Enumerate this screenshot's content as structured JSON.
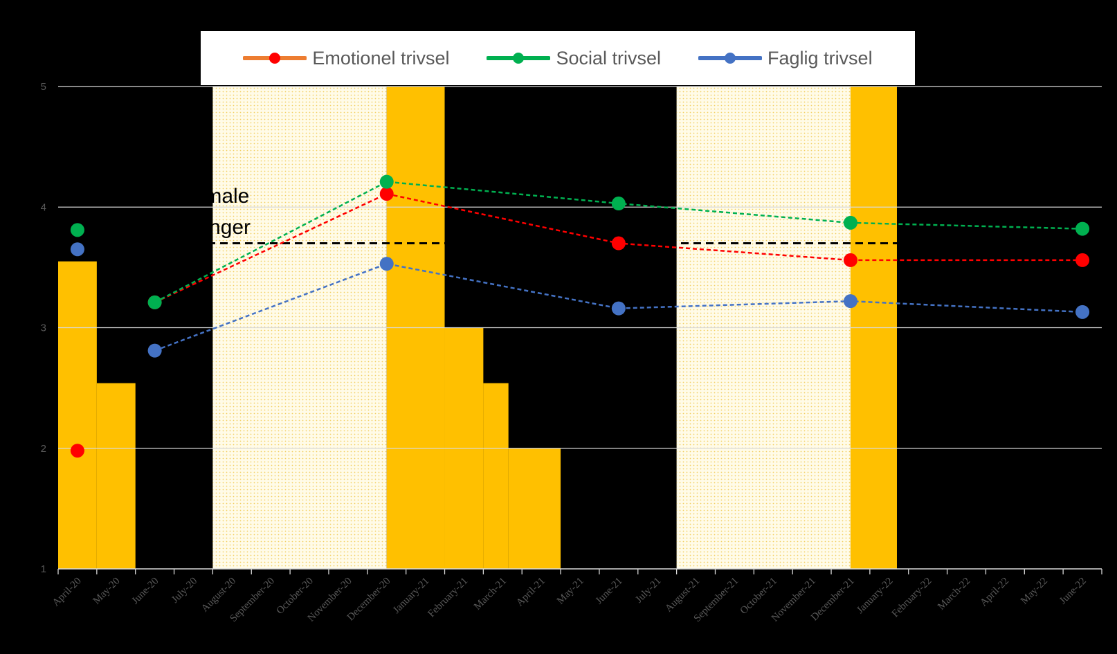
{
  "chart_data": {
    "type": "line",
    "title": "",
    "xlabel": "",
    "ylabel": "",
    "ylim": [
      1,
      5
    ],
    "yticks": [
      "1",
      "2",
      "3",
      "4",
      "5"
    ],
    "categories": [
      "April-20",
      "May-20",
      "June-20",
      "July-20",
      "August-20",
      "September-20",
      "October-20",
      "November-20",
      "December-20",
      "January-21",
      "February-21",
      "March-21",
      "April-21",
      "May-21",
      "June-21",
      "July-21",
      "August-21",
      "September-21",
      "October-21",
      "November-21",
      "December-21",
      "January-22",
      "February-22",
      "March-22",
      "April-22",
      "May-22",
      "June-22"
    ],
    "series": [
      {
        "name": "Emotionel trivsel",
        "color": "#FF0000",
        "line_color": "#ED7D31",
        "points": [
          [
            0,
            1.98
          ],
          [
            2,
            3.21
          ],
          [
            8,
            4.11
          ],
          [
            14,
            3.7
          ],
          [
            20,
            3.56
          ],
          [
            26,
            3.56
          ]
        ]
      },
      {
        "name": "Social trivsel",
        "color": "#00B050",
        "line_color": "#00B050",
        "points": [
          [
            0,
            3.81
          ],
          [
            2,
            3.21
          ],
          [
            8,
            4.21
          ],
          [
            14,
            4.03
          ],
          [
            20,
            3.87
          ],
          [
            26,
            3.82
          ]
        ]
      },
      {
        "name": "Faglig trivsel",
        "color": "#4472C4",
        "line_color": "#4472C4",
        "points": [
          [
            0,
            3.65
          ],
          [
            2,
            2.81
          ],
          [
            8,
            3.53
          ],
          [
            14,
            3.16
          ],
          [
            20,
            3.22
          ],
          [
            26,
            3.13
          ]
        ]
      }
    ],
    "lockdown_bars": {
      "color": "#FFC000",
      "segments": [
        {
          "from": -0.5,
          "to": 0.5,
          "value": 3.55
        },
        {
          "from": 0.5,
          "to": 1.5,
          "value": 2.54
        },
        {
          "from": 8.0,
          "to": 9.5,
          "value": 5.0
        },
        {
          "from": 9.5,
          "to": 10.5,
          "value": 3.0
        },
        {
          "from": 10.5,
          "to": 11.15,
          "value": 2.54
        },
        {
          "from": 11.15,
          "to": 12.5,
          "value": 2.0
        },
        {
          "from": 20.0,
          "to": 21.2,
          "value": 5.0
        }
      ]
    },
    "holiday_bands": {
      "color": "#FFFBE8",
      "dot_color": "#F5D26A",
      "segments": [
        {
          "from": 3.5,
          "to": 8.0
        },
        {
          "from": 15.5,
          "to": 20.0
        }
      ]
    },
    "reference_line": {
      "value": 3.7,
      "label": "Normale målinger",
      "label_lines": [
        "Normale",
        "målinger"
      ],
      "style": "dashed",
      "color": "#000000"
    }
  },
  "legend": {
    "items": [
      {
        "label": "Emotionel trivsel",
        "line_color": "#ED7D31",
        "dot_color": "#FF0000"
      },
      {
        "label": "Social trivsel",
        "line_color": "#00B050",
        "dot_color": "#00B050"
      },
      {
        "label": "Faglig trivsel",
        "line_color": "#4472C4",
        "dot_color": "#4472C4"
      }
    ]
  }
}
